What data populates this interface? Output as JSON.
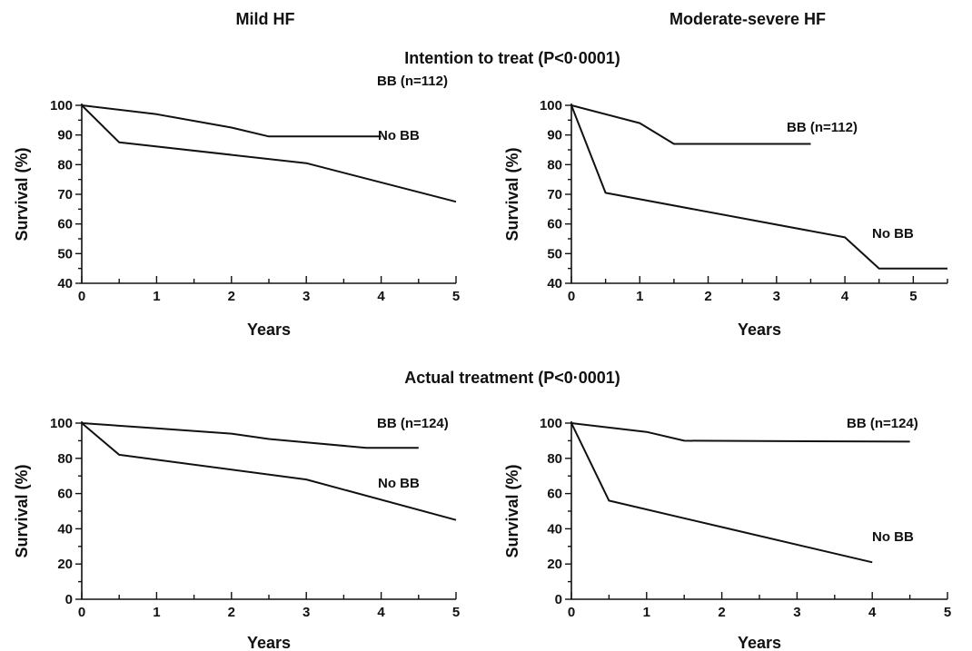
{
  "figure": {
    "column_titles": [
      "Mild HF",
      "Moderate-severe HF"
    ],
    "section_titles": [
      "Intention to treat (P<0·0001)",
      "Actual treatment (P<0·0001)"
    ]
  },
  "chart_data": [
    {
      "type": "line",
      "title": "",
      "xlabel": "Years",
      "ylabel": "Survival (%)",
      "xlim": [
        0,
        5
      ],
      "ylim": [
        40,
        100
      ],
      "x_ticks": [
        0,
        1,
        2,
        3,
        4,
        5
      ],
      "y_ticks": [
        40,
        50,
        60,
        70,
        80,
        90,
        100
      ],
      "grid": false,
      "series": [
        {
          "name": "BB (n=112)",
          "x": [
            0,
            1,
            2,
            2.5,
            3,
            4
          ],
          "y": [
            100,
            97,
            92.5,
            89.5,
            89.5,
            89.5
          ]
        },
        {
          "name": "No BB",
          "x": [
            0,
            0.5,
            3,
            5
          ],
          "y": [
            100,
            87.5,
            80.5,
            67.5
          ]
        }
      ]
    },
    {
      "type": "line",
      "title": "",
      "xlabel": "Years",
      "ylabel": "Survival (%)",
      "xlim": [
        0,
        5.5
      ],
      "ylim": [
        40,
        100
      ],
      "x_ticks": [
        0,
        1,
        2,
        3,
        4,
        5
      ],
      "y_ticks": [
        40,
        50,
        60,
        70,
        80,
        90,
        100
      ],
      "grid": false,
      "series": [
        {
          "name": "BB (n=112)",
          "x": [
            0,
            1,
            1.5,
            3.5
          ],
          "y": [
            100,
            94,
            87,
            87
          ]
        },
        {
          "name": "No BB",
          "x": [
            0,
            0.5,
            4,
            4.5,
            5.5
          ],
          "y": [
            100,
            70.5,
            55.5,
            45,
            45
          ]
        }
      ]
    },
    {
      "type": "line",
      "title": "",
      "xlabel": "Years",
      "ylabel": "Survival (%)",
      "xlim": [
        0,
        5
      ],
      "ylim": [
        0,
        100
      ],
      "x_ticks": [
        0,
        1,
        2,
        3,
        4,
        5
      ],
      "y_ticks": [
        0,
        20,
        40,
        60,
        80,
        100
      ],
      "grid": false,
      "series": [
        {
          "name": "BB (n=124)",
          "x": [
            0,
            1,
            2,
            2.5,
            3,
            3.8,
            4.5
          ],
          "y": [
            100,
            97,
            94,
            91,
            89,
            86,
            86
          ]
        },
        {
          "name": "No BB",
          "x": [
            0,
            0.5,
            3,
            5
          ],
          "y": [
            100,
            82,
            68,
            45
          ]
        }
      ]
    },
    {
      "type": "line",
      "title": "",
      "xlabel": "Years",
      "ylabel": "Survival (%)",
      "xlim": [
        0,
        5
      ],
      "ylim": [
        0,
        100
      ],
      "x_ticks": [
        0,
        1,
        2,
        3,
        4,
        5
      ],
      "y_ticks": [
        0,
        20,
        40,
        60,
        80,
        100
      ],
      "grid": false,
      "series": [
        {
          "name": "BB (n=124)",
          "x": [
            0,
            1,
            1.5,
            4.5
          ],
          "y": [
            100,
            95,
            90,
            89.5
          ]
        },
        {
          "name": "No BB",
          "x": [
            0,
            0.5,
            2,
            4
          ],
          "y": [
            100,
            56,
            41,
            21
          ]
        }
      ]
    }
  ]
}
